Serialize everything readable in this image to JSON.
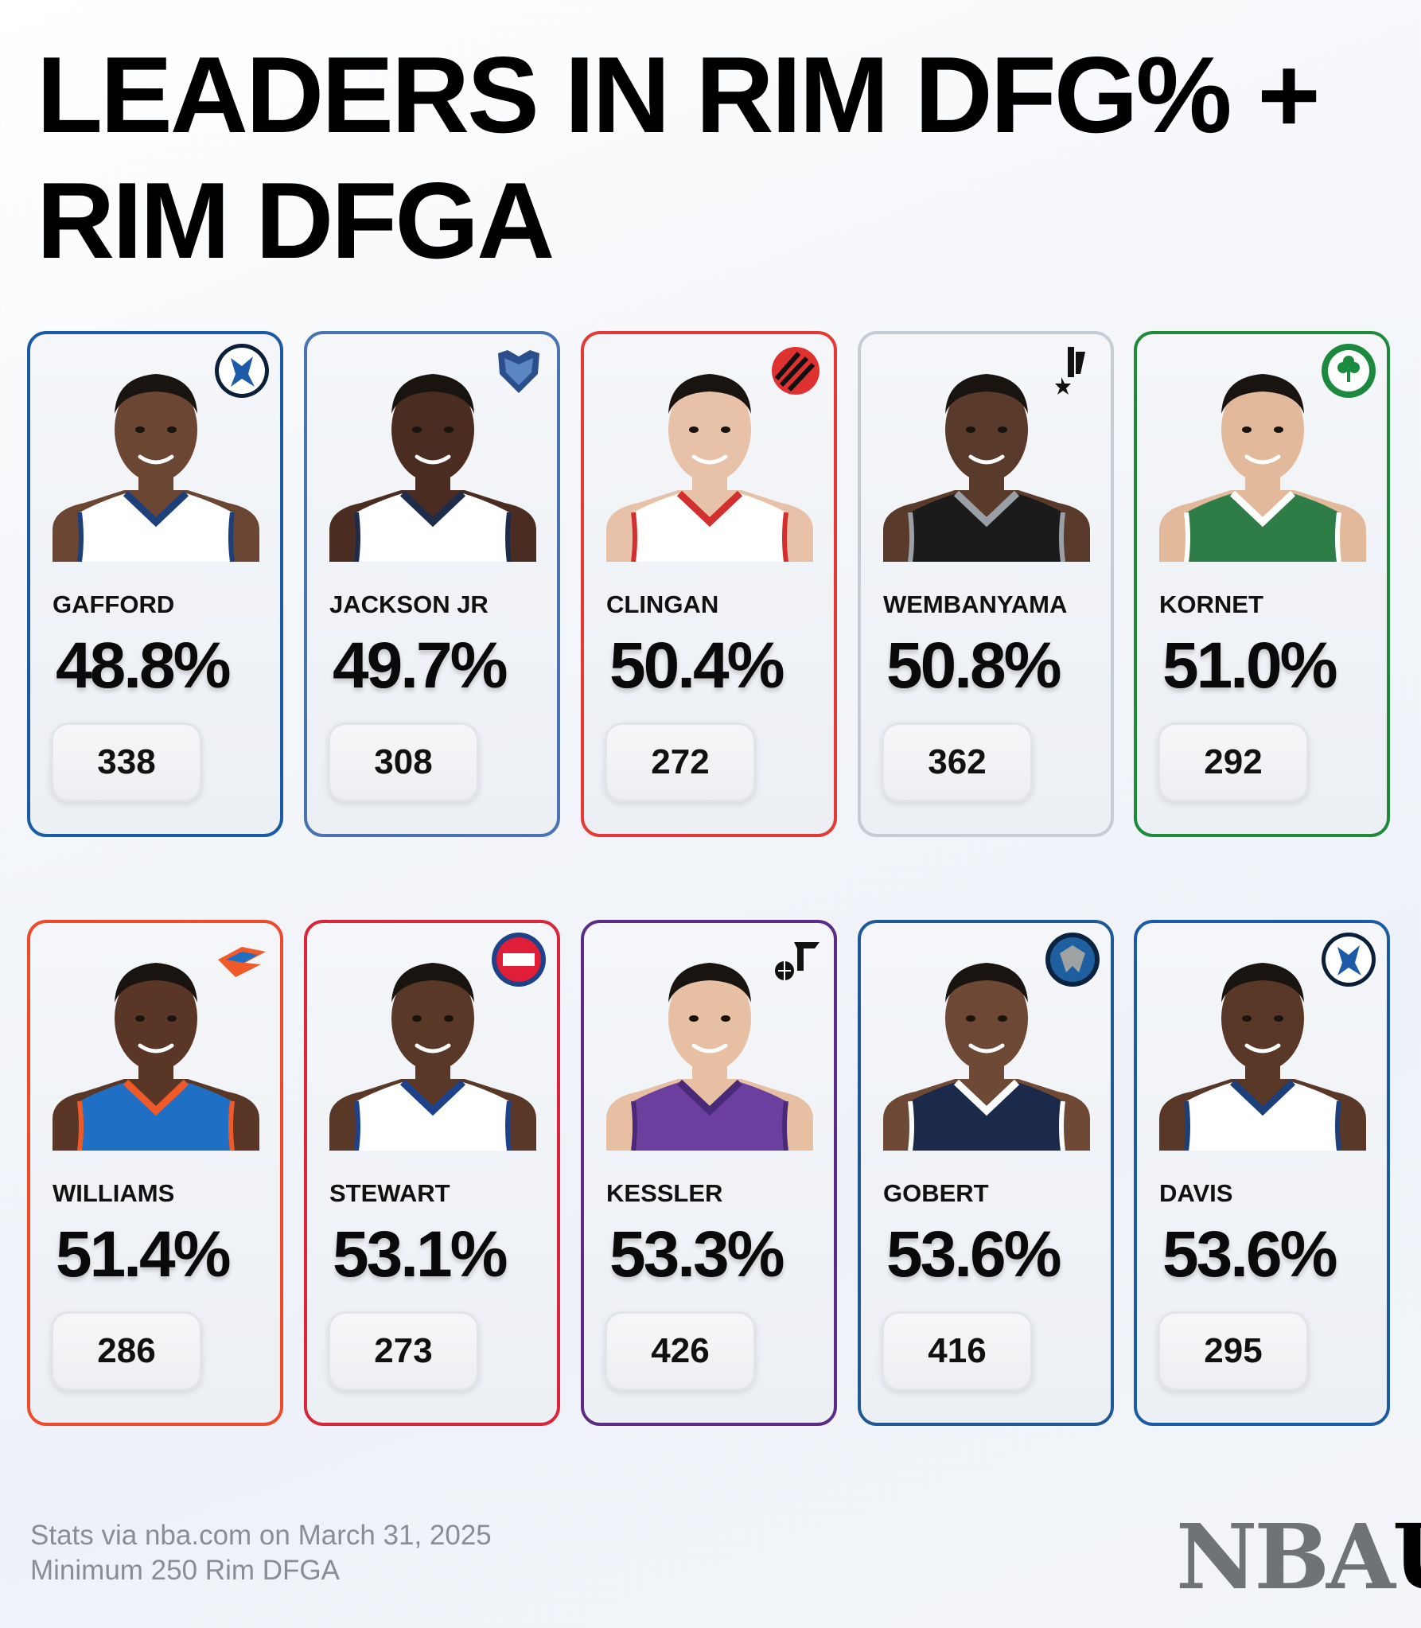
{
  "title_line1": "LEADERS IN RIM DFG% +",
  "title_line2": "RIM DFGA",
  "cards": [
    {
      "name": "GAFFORD",
      "pct": "48.8%",
      "dfga": "338",
      "team": "mavericks",
      "border": "#1b5ba6",
      "jersey": "#ffffff",
      "trim": "#1d3f7a",
      "skin": "#6b4632",
      "logo_icon": "mavericks-logo-icon"
    },
    {
      "name": "JACKSON JR",
      "pct": "49.7%",
      "dfga": "308",
      "team": "grizzlies",
      "border": "#4a74b0",
      "jersey": "#ffffff",
      "trim": "#1f2b4a",
      "skin": "#4a2d20",
      "logo_icon": "grizzlies-logo-icon"
    },
    {
      "name": "CLINGAN",
      "pct": "50.4%",
      "dfga": "272",
      "team": "trail-blazers",
      "border": "#e53935",
      "jersey": "#ffffff",
      "trim": "#d32f2f",
      "skin": "#e7c2a8",
      "logo_icon": "trail-blazers-logo-icon"
    },
    {
      "name": "WEMBANYAMA",
      "pct": "50.8%",
      "dfga": "362",
      "team": "spurs",
      "border": "#c5ccd3",
      "jersey": "#1b1b1b",
      "trim": "#9aa0a6",
      "skin": "#5a3a2a",
      "logo_icon": "spurs-logo-icon"
    },
    {
      "name": "KORNET",
      "pct": "51.0%",
      "dfga": "292",
      "team": "celtics",
      "border": "#1e8a3a",
      "jersey": "#2e7d47",
      "trim": "#ffffff",
      "skin": "#e3b99b",
      "logo_icon": "celtics-logo-icon"
    },
    {
      "name": "WILLIAMS",
      "pct": "51.4%",
      "dfga": "286",
      "team": "thunder",
      "border": "#ef4b2a",
      "jersey": "#1f6fc4",
      "trim": "#f05a28",
      "skin": "#5a3626",
      "logo_icon": "thunder-logo-icon"
    },
    {
      "name": "STEWART",
      "pct": "53.1%",
      "dfga": "273",
      "team": "pistons",
      "border": "#d9263a",
      "jersey": "#ffffff",
      "trim": "#1d428a",
      "skin": "#5a3828",
      "logo_icon": "pistons-logo-icon"
    },
    {
      "name": "KESSLER",
      "pct": "53.3%",
      "dfga": "426",
      "team": "jazz",
      "border": "#5b2c83",
      "jersey": "#6a3fa0",
      "trim": "#4a2a78",
      "skin": "#e7c0a4",
      "logo_icon": "jazz-logo-icon"
    },
    {
      "name": "GOBERT",
      "pct": "53.6%",
      "dfga": "416",
      "team": "timberwolves",
      "border": "#1f5a96",
      "jersey": "#1b2a4a",
      "trim": "#ffffff",
      "skin": "#6e4a36",
      "logo_icon": "timberwolves-logo-icon"
    },
    {
      "name": "DAVIS",
      "pct": "53.6%",
      "dfga": "295",
      "team": "mavericks",
      "border": "#1b5ba6",
      "jersey": "#ffffff",
      "trim": "#1d3f7a",
      "skin": "#5a3828",
      "logo_icon": "mavericks-logo-icon"
    }
  ],
  "footer_line1": "Stats via nba.com on March 31, 2025",
  "footer_line2": "Minimum 250 Rim DFGA",
  "brand_left": "NBA",
  "brand_right": "U"
}
